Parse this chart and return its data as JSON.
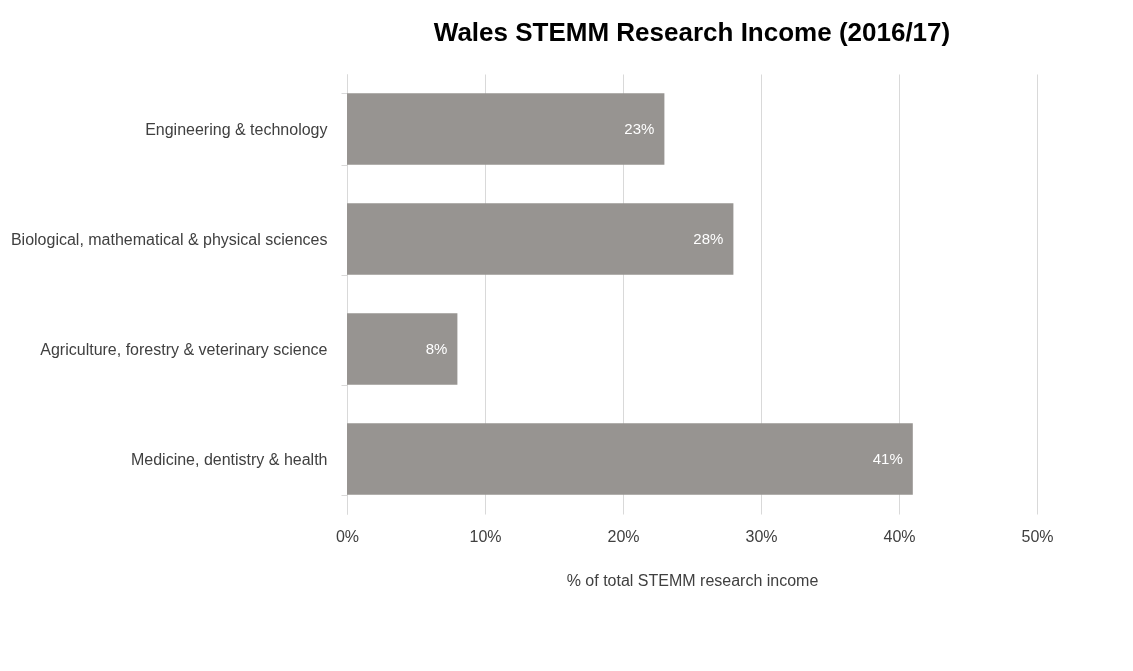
{
  "chart_data": {
    "type": "bar",
    "orientation": "horizontal",
    "title": "Wales STEMM Research Income (2016/17)",
    "categories": [
      "Engineering & technology",
      "Biological, mathematical & physical sciences",
      "Agriculture, forestry & veterinary science",
      "Medicine, dentistry & health"
    ],
    "values": [
      23,
      28,
      8,
      41
    ],
    "color": "#979491",
    "xlim": [
      0,
      50
    ],
    "xticks": [
      {
        "value": 0,
        "label": "0%"
      },
      {
        "value": 10,
        "label": "10%"
      },
      {
        "value": 20,
        "label": "20%"
      },
      {
        "value": 30,
        "label": "30%"
      },
      {
        "value": 40,
        "label": "40%"
      },
      {
        "value": 50,
        "label": "50%"
      }
    ],
    "xlabel": "% of total STEMM research income",
    "grid": "x",
    "value_labels": [
      "23%",
      "28%",
      "8%",
      "41%"
    ]
  }
}
